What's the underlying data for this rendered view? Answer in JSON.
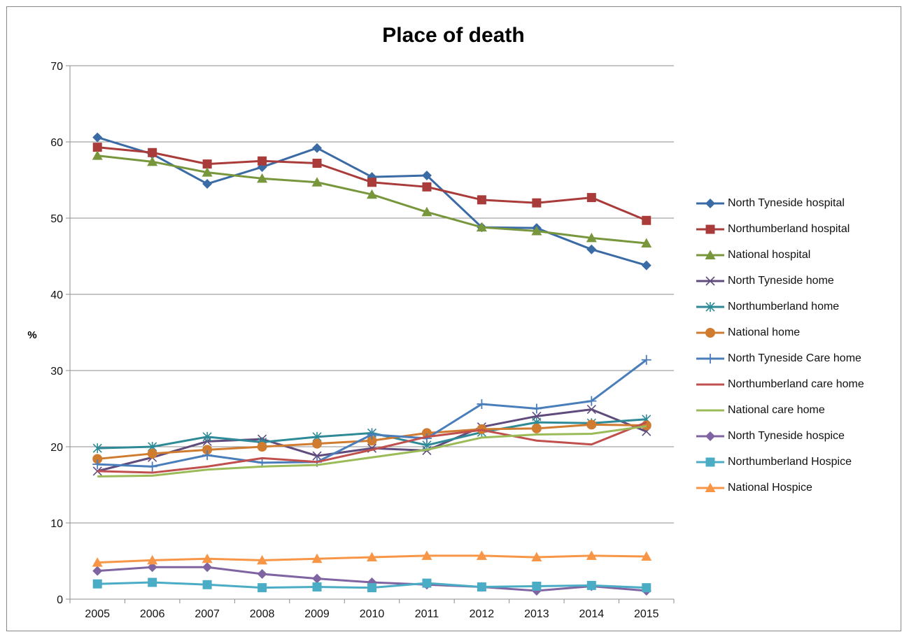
{
  "chart_data": {
    "type": "line",
    "title": "Place of death",
    "xlabel": "",
    "ylabel": "%",
    "ylim": [
      0,
      70
    ],
    "yticks": [
      0,
      10,
      20,
      30,
      40,
      50,
      60,
      70
    ],
    "categories": [
      "2005",
      "2006",
      "2007",
      "2008",
      "2009",
      "2010",
      "2011",
      "2012",
      "2013",
      "2014",
      "2015"
    ],
    "grid": "horizontal",
    "legend_position": "right",
    "series": [
      {
        "name": "North Tyneside hospital",
        "color": "#3b6ba5",
        "marker": "diamond",
        "values": [
          60.6,
          58.4,
          54.5,
          56.7,
          59.2,
          55.4,
          55.6,
          48.8,
          48.7,
          45.9,
          43.8
        ]
      },
      {
        "name": "Northumberland hospital",
        "color": "#a93c3a",
        "marker": "square",
        "values": [
          59.3,
          58.6,
          57.1,
          57.5,
          57.2,
          54.7,
          54.1,
          52.4,
          52.0,
          52.7,
          49.7
        ]
      },
      {
        "name": "National hospital",
        "color": "#78973d",
        "marker": "triangle",
        "values": [
          58.2,
          57.4,
          56.0,
          55.2,
          54.7,
          53.1,
          50.8,
          48.8,
          48.3,
          47.4,
          46.7
        ]
      },
      {
        "name": "North Tyneside home",
        "color": "#5f4b7c",
        "marker": "x",
        "values": [
          16.8,
          18.6,
          20.7,
          21.0,
          18.8,
          19.8,
          19.5,
          22.6,
          24.0,
          24.9,
          22.0
        ]
      },
      {
        "name": "Northumberland home",
        "color": "#2e8a97",
        "marker": "asterisk",
        "values": [
          19.8,
          20.0,
          21.3,
          20.6,
          21.3,
          21.8,
          20.2,
          21.9,
          23.2,
          23.1,
          23.6
        ]
      },
      {
        "name": "National home",
        "color": "#d07c30",
        "marker": "circle",
        "values": [
          18.4,
          19.1,
          19.6,
          20.0,
          20.4,
          20.8,
          21.8,
          22.3,
          22.4,
          22.9,
          22.8
        ]
      },
      {
        "name": "North Tyneside Care home",
        "color": "#4a7ebb",
        "marker": "plus",
        "values": [
          17.7,
          17.4,
          18.9,
          17.9,
          18.0,
          21.6,
          21.1,
          25.6,
          25.0,
          26.0,
          31.4
        ]
      },
      {
        "name": "Northumberland care home",
        "color": "#c0504d",
        "marker": "none",
        "values": [
          16.8,
          16.6,
          17.4,
          18.5,
          18.0,
          19.6,
          21.3,
          22.2,
          20.8,
          20.3,
          23.2
        ]
      },
      {
        "name": "National care home",
        "color": "#9bbb59",
        "marker": "none",
        "values": [
          16.1,
          16.2,
          17.0,
          17.4,
          17.6,
          18.6,
          19.6,
          21.2,
          21.6,
          21.7,
          22.7
        ]
      },
      {
        "name": "North Tyneside hospice",
        "color": "#8064a2",
        "marker": "diamond",
        "values": [
          3.7,
          4.2,
          4.2,
          3.3,
          2.7,
          2.2,
          1.9,
          1.6,
          1.1,
          1.7,
          1.1
        ]
      },
      {
        "name": "Northumberland Hospice",
        "color": "#4bacc6",
        "marker": "square",
        "values": [
          2.0,
          2.2,
          1.9,
          1.5,
          1.6,
          1.5,
          2.1,
          1.6,
          1.7,
          1.8,
          1.5
        ]
      },
      {
        "name": "National Hospice",
        "color": "#f79646",
        "marker": "triangle",
        "values": [
          4.8,
          5.1,
          5.3,
          5.1,
          5.3,
          5.5,
          5.7,
          5.7,
          5.5,
          5.7,
          5.6
        ]
      }
    ]
  }
}
